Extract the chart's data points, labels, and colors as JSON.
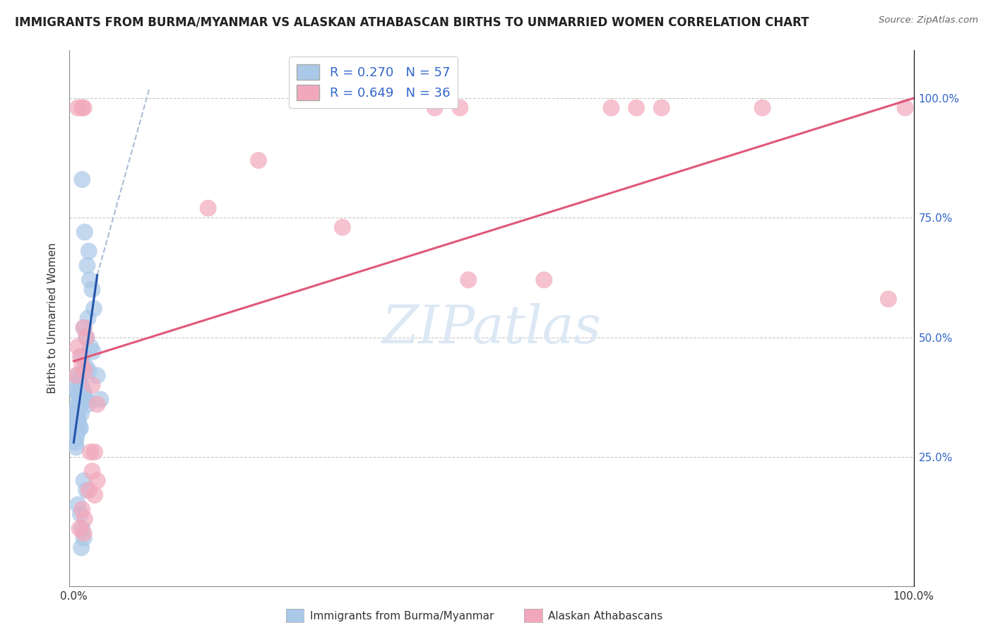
{
  "title": "IMMIGRANTS FROM BURMA/MYANMAR VS ALASKAN ATHABASCAN BIRTHS TO UNMARRIED WOMEN CORRELATION CHART",
  "source": "Source: ZipAtlas.com",
  "ylabel": "Births to Unmarried Women",
  "r_blue": 0.27,
  "n_blue": 57,
  "r_pink": 0.649,
  "n_pink": 36,
  "legend_label_blue": "Immigrants from Burma/Myanmar",
  "legend_label_pink": "Alaskan Athabascans",
  "blue_color": "#aac8e8",
  "pink_color": "#f2a8bc",
  "blue_line_color": "#2255aa",
  "pink_line_color": "#e05878",
  "dashed_ext_color": "#aabcd8",
  "background_color": "#ffffff",
  "watermark_color": "#dce8f4",
  "title_fontsize": 12,
  "axis_label_fontsize": 11,
  "legend_fontsize": 13,
  "right_label_color": "#3366cc"
}
